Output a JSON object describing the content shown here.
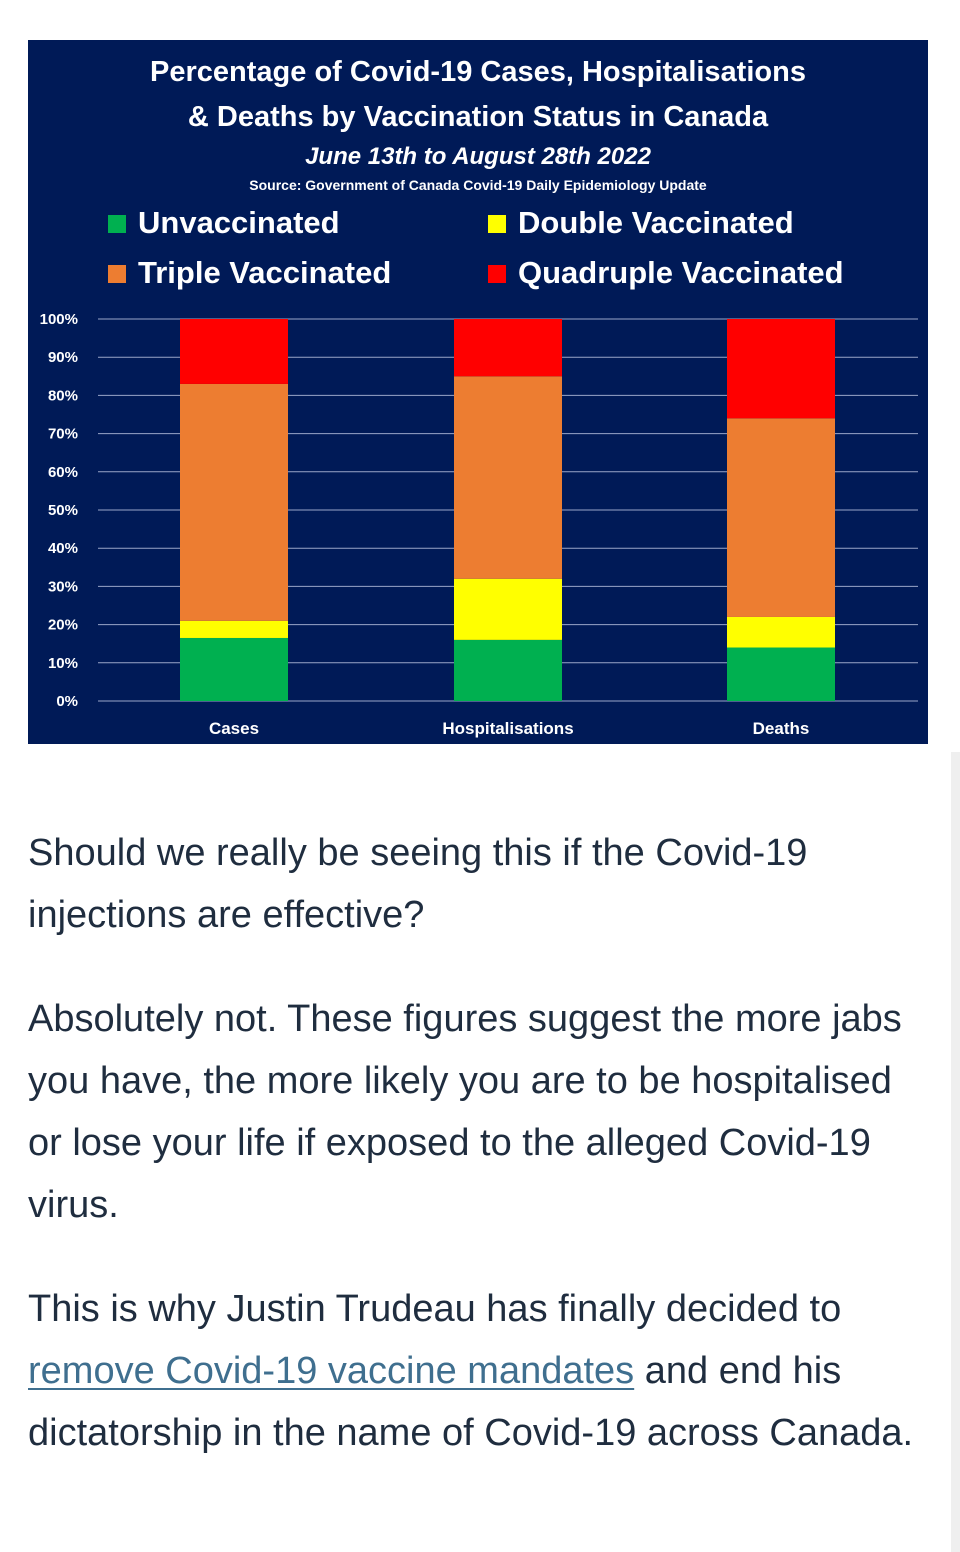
{
  "chart_data": {
    "type": "bar",
    "stacked": true,
    "title_line1": "Percentage of Covid-19 Cases, Hospitalisations",
    "title_line2": "& Deaths by Vaccination Status in Canada",
    "subtitle": "June 13th to August 28th 2022",
    "source": "Source: Government of Canada Covid-19 Daily Epidemiology Update",
    "categories": [
      "Cases",
      "Hospitalisations",
      "Deaths"
    ],
    "series": [
      {
        "name": "Unvaccinated",
        "color": "#00b050",
        "values": [
          16.5,
          16,
          14
        ]
      },
      {
        "name": "Double Vaccinated",
        "color": "#ffff00",
        "values": [
          4.5,
          16,
          8
        ]
      },
      {
        "name": "Triple Vaccinated",
        "color": "#ed7d31",
        "values": [
          62,
          53,
          52
        ]
      },
      {
        "name": "Quadruple Vaccinated",
        "color": "#ff0000",
        "values": [
          17,
          15,
          26
        ]
      }
    ],
    "yticks": [
      "0%",
      "10%",
      "20%",
      "30%",
      "40%",
      "50%",
      "60%",
      "70%",
      "80%",
      "90%",
      "100%"
    ],
    "ylim": [
      0,
      100
    ],
    "background": "#001a57",
    "legend_position": "top",
    "grid": true
  },
  "article": {
    "para1": "Should we really be seeing this if the Covid-19 injections are effective?",
    "para2": "Absolutely not. These figures suggest the more jabs you have, the more likely you are to be hospitalised or lose your life if exposed to the alleged Covid-19 virus.",
    "para3_before": "This is why Justin Trudeau has finally decided to ",
    "para3_link": "remove Covid-19 vaccine mandates",
    "para3_after": " and end his dictatorship in the name of Covid-19 across Canada."
  }
}
